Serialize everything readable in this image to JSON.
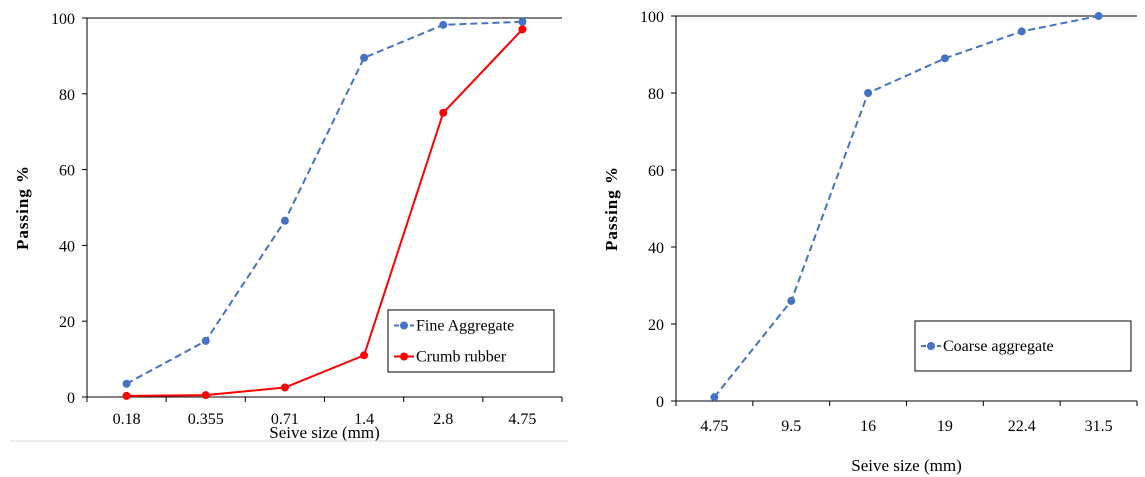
{
  "chart_data": [
    {
      "type": "line",
      "categories": [
        "0.18",
        "0.355",
        "0.71",
        "1.4",
        "2.8",
        "4.75"
      ],
      "series": [
        {
          "name": "Fine Aggregate",
          "values": [
            3.5,
            14.8,
            46.5,
            89.5,
            98.2,
            99.0
          ],
          "color": "#4472C4",
          "dash": true
        },
        {
          "name": "Crumb rubber",
          "values": [
            0.3,
            0.5,
            2.5,
            11.0,
            75.0,
            97.0
          ],
          "color": "#FF0000",
          "dash": false
        }
      ],
      "xlabel": "Seive size (mm)",
      "ylabel": "Passing %",
      "ylim": [
        0,
        100
      ],
      "yticks": [
        "0",
        "20",
        "40",
        "60",
        "80",
        "100"
      ],
      "grid": false,
      "legend": "bottom-right"
    },
    {
      "type": "line",
      "categories": [
        "4.75",
        "9.5",
        "16",
        "19",
        "22.4",
        "31.5"
      ],
      "series": [
        {
          "name": "Coarse aggregate",
          "values": [
            1.0,
            26.0,
            80.0,
            89.0,
            96.0,
            100.0
          ],
          "color": "#4472C4",
          "dash": true
        }
      ],
      "xlabel": "Seive size (mm)",
      "ylabel": "Passing %",
      "ylim": [
        0,
        100
      ],
      "yticks": [
        "0",
        "20",
        "40",
        "60",
        "80",
        "100"
      ],
      "grid": false,
      "legend": "bottom-right"
    }
  ]
}
